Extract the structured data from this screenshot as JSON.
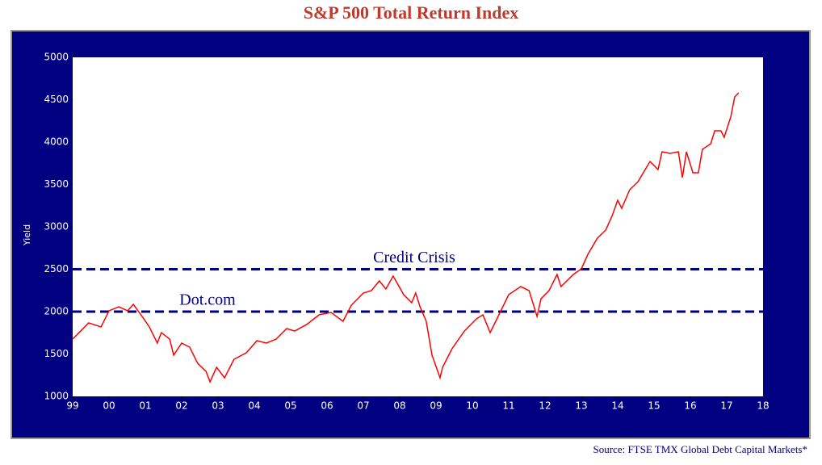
{
  "chart_data": {
    "type": "line",
    "title": "S&P 500 Total Return Index",
    "y_label": "Yield",
    "source": "Source: FTSE TMX Global Debt Capital Markets*",
    "x": [
      1999.0,
      1999.22,
      1999.44,
      1999.78,
      2000.0,
      2000.27,
      2000.51,
      2000.67,
      2000.96,
      2001.11,
      2001.33,
      2001.44,
      2001.67,
      2001.78,
      2002.0,
      2002.22,
      2002.44,
      2002.67,
      2002.78,
      2002.96,
      2003.18,
      2003.44,
      2003.78,
      2004.07,
      2004.33,
      2004.6,
      2004.89,
      2005.11,
      2005.44,
      2005.78,
      2006.11,
      2006.44,
      2006.67,
      2007.0,
      2007.22,
      2007.44,
      2007.62,
      2007.82,
      2008.11,
      2008.33,
      2008.44,
      2008.56,
      2008.73,
      2008.89,
      2009.11,
      2009.18,
      2009.44,
      2009.78,
      2010.11,
      2010.29,
      2010.49,
      2010.73,
      2011.0,
      2011.33,
      2011.56,
      2011.78,
      2011.89,
      2012.11,
      2012.33,
      2012.44,
      2012.78,
      2013.0,
      2013.18,
      2013.44,
      2013.67,
      2013.84,
      2014.0,
      2014.11,
      2014.33,
      2014.56,
      2014.73,
      2014.89,
      2015.11,
      2015.22,
      2015.44,
      2015.67,
      2015.78,
      2015.89,
      2016.07,
      2016.22,
      2016.33,
      2016.56,
      2016.67,
      2016.84,
      2016.93,
      2017.11,
      2017.22,
      2017.33
    ],
    "series": [
      {
        "name": "S&P 500 Total Return Index",
        "color": "#ff0000",
        "values": [
          1676,
          1771,
          1867,
          1819,
          2010,
          2057,
          2010,
          2086,
          1914,
          1819,
          1629,
          1752,
          1676,
          1486,
          1629,
          1581,
          1390,
          1295,
          1171,
          1343,
          1219,
          1438,
          1514,
          1657,
          1629,
          1676,
          1800,
          1771,
          1848,
          1962,
          1990,
          1886,
          2076,
          2219,
          2248,
          2362,
          2267,
          2419,
          2200,
          2105,
          2219,
          2057,
          1886,
          1486,
          1219,
          1343,
          1562,
          1771,
          1914,
          1962,
          1752,
          1962,
          2200,
          2295,
          2248,
          1943,
          2152,
          2248,
          2438,
          2295,
          2438,
          2505,
          2676,
          2867,
          2962,
          3124,
          3314,
          3219,
          3438,
          3533,
          3657,
          3771,
          3676,
          3886,
          3867,
          3886,
          3581,
          3886,
          3638,
          3638,
          3914,
          3981,
          4133,
          4133,
          4057,
          4295,
          4533,
          4581
        ]
      }
    ],
    "xlim": [
      1999,
      2018
    ],
    "xticks": [
      {
        "value": 1999,
        "label": "99"
      },
      {
        "value": 2000,
        "label": "00"
      },
      {
        "value": 2001,
        "label": "01"
      },
      {
        "value": 2002,
        "label": "02"
      },
      {
        "value": 2003,
        "label": "03"
      },
      {
        "value": 2004,
        "label": "04"
      },
      {
        "value": 2005,
        "label": "05"
      },
      {
        "value": 2006,
        "label": "06"
      },
      {
        "value": 2007,
        "label": "07"
      },
      {
        "value": 2008,
        "label": "08"
      },
      {
        "value": 2009,
        "label": "09"
      },
      {
        "value": 2010,
        "label": "10"
      },
      {
        "value": 2011,
        "label": "11"
      },
      {
        "value": 2012,
        "label": "12"
      },
      {
        "value": 2013,
        "label": "13"
      },
      {
        "value": 2014,
        "label": "14"
      },
      {
        "value": 2015,
        "label": "15"
      },
      {
        "value": 2016,
        "label": "16"
      },
      {
        "value": 2017,
        "label": "17"
      },
      {
        "value": 2018,
        "label": "18"
      }
    ],
    "ylim": [
      1000,
      5000
    ],
    "yticks": [
      1000,
      1500,
      2000,
      2500,
      3000,
      3500,
      4000,
      4500,
      5000
    ],
    "reference_lines": [
      {
        "label": "Dot.com",
        "value": 2000,
        "color": "#000080"
      },
      {
        "label": "Credit Crisis",
        "value": 2500,
        "color": "#000080"
      }
    ]
  }
}
